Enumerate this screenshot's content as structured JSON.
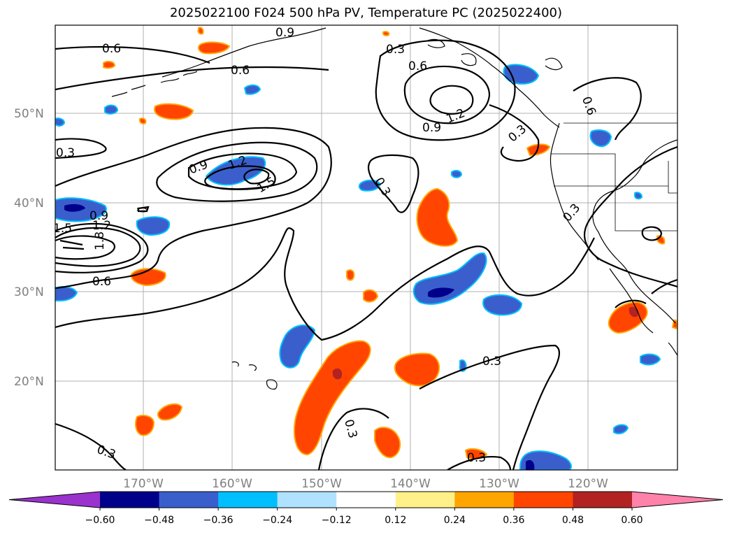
{
  "title": "2025022100 F024 500 hPa PV, Temperature PC (2025022400)",
  "map": {
    "lat_labels": [
      "50°N",
      "40°N",
      "30°N",
      "20°N"
    ],
    "lon_labels": [
      "170°W",
      "160°W",
      "150°W",
      "140°W",
      "130°W",
      "120°W"
    ],
    "contour_labels": [
      "0.6",
      "0.9",
      "0.6",
      "0.3",
      "0.6",
      "1.2",
      "0.9",
      "0.3",
      "0.6",
      "0.3",
      "0.9",
      "1.2",
      "1.5",
      "0.3",
      "0.3",
      "0.9",
      "1.2",
      "1.5",
      "1.8",
      "0.6",
      "0.3",
      "0.3",
      "0.3",
      "0.3"
    ]
  },
  "colorbar": {
    "ticks": [
      "−0.60",
      "−0.48",
      "−0.36",
      "−0.24",
      "−0.12",
      "0.12",
      "0.24",
      "0.36",
      "0.48",
      "0.60"
    ],
    "colors": [
      "#9a32cd",
      "#00008b",
      "#3a5fcd",
      "#00bfff",
      "#b0e2ff",
      "#ffffff",
      "#fff08a",
      "#ffa500",
      "#ff4500",
      "#b22222",
      "#ff82ab"
    ]
  },
  "colors": {
    "warm_fill": "#ff4500",
    "warm_edge": "#ffa500",
    "warm_strong": "#b22222",
    "cold_fill": "#3a5fcd",
    "cold_edge": "#00bfff",
    "cold_strong": "#00008b"
  }
}
